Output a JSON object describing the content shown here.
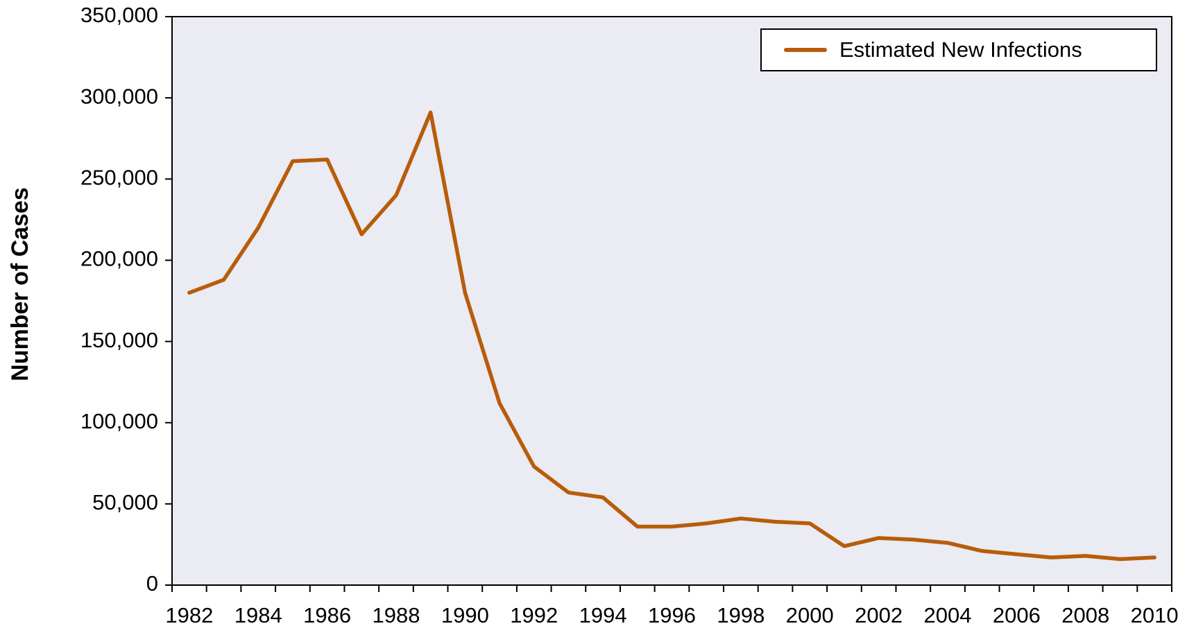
{
  "chart_data": {
    "type": "line",
    "y_label": "Number of Cases",
    "categories": [
      "1982",
      null,
      "1984",
      null,
      "1986",
      null,
      "1988",
      null,
      "1990",
      null,
      "1992",
      null,
      "1994",
      null,
      "1996",
      null,
      "1998",
      null,
      "2000",
      null,
      "2002",
      null,
      "2004",
      null,
      "2006",
      null,
      "2008",
      null,
      "2010"
    ],
    "series": [
      {
        "name": "Estimated New Infections",
        "color": "#b85c0a",
        "values": [
          180000,
          188000,
          220000,
          261000,
          262000,
          216000,
          240000,
          291000,
          180000,
          112000,
          73000,
          57000,
          54000,
          36000,
          36000,
          38000,
          41000,
          39000,
          38000,
          24000,
          29000,
          28000,
          26000,
          21000,
          19000,
          17000,
          18000,
          16000,
          17000
        ]
      }
    ],
    "ylim": [
      0,
      350000
    ],
    "yticks": [
      0,
      {
        "value": 50000,
        "label": "50,000"
      },
      {
        "value": 100000,
        "label": "100,000"
      },
      {
        "value": 150000,
        "label": "150,000"
      },
      {
        "value": 200000,
        "label": "200,000"
      },
      {
        "value": 250000,
        "label": "250,000"
      },
      {
        "value": 300000,
        "label": "300,000"
      },
      {
        "value": 350000,
        "label": "350,000"
      }
    ],
    "grid": false,
    "legend": "upper right",
    "plot_background": "#eaebf3"
  }
}
